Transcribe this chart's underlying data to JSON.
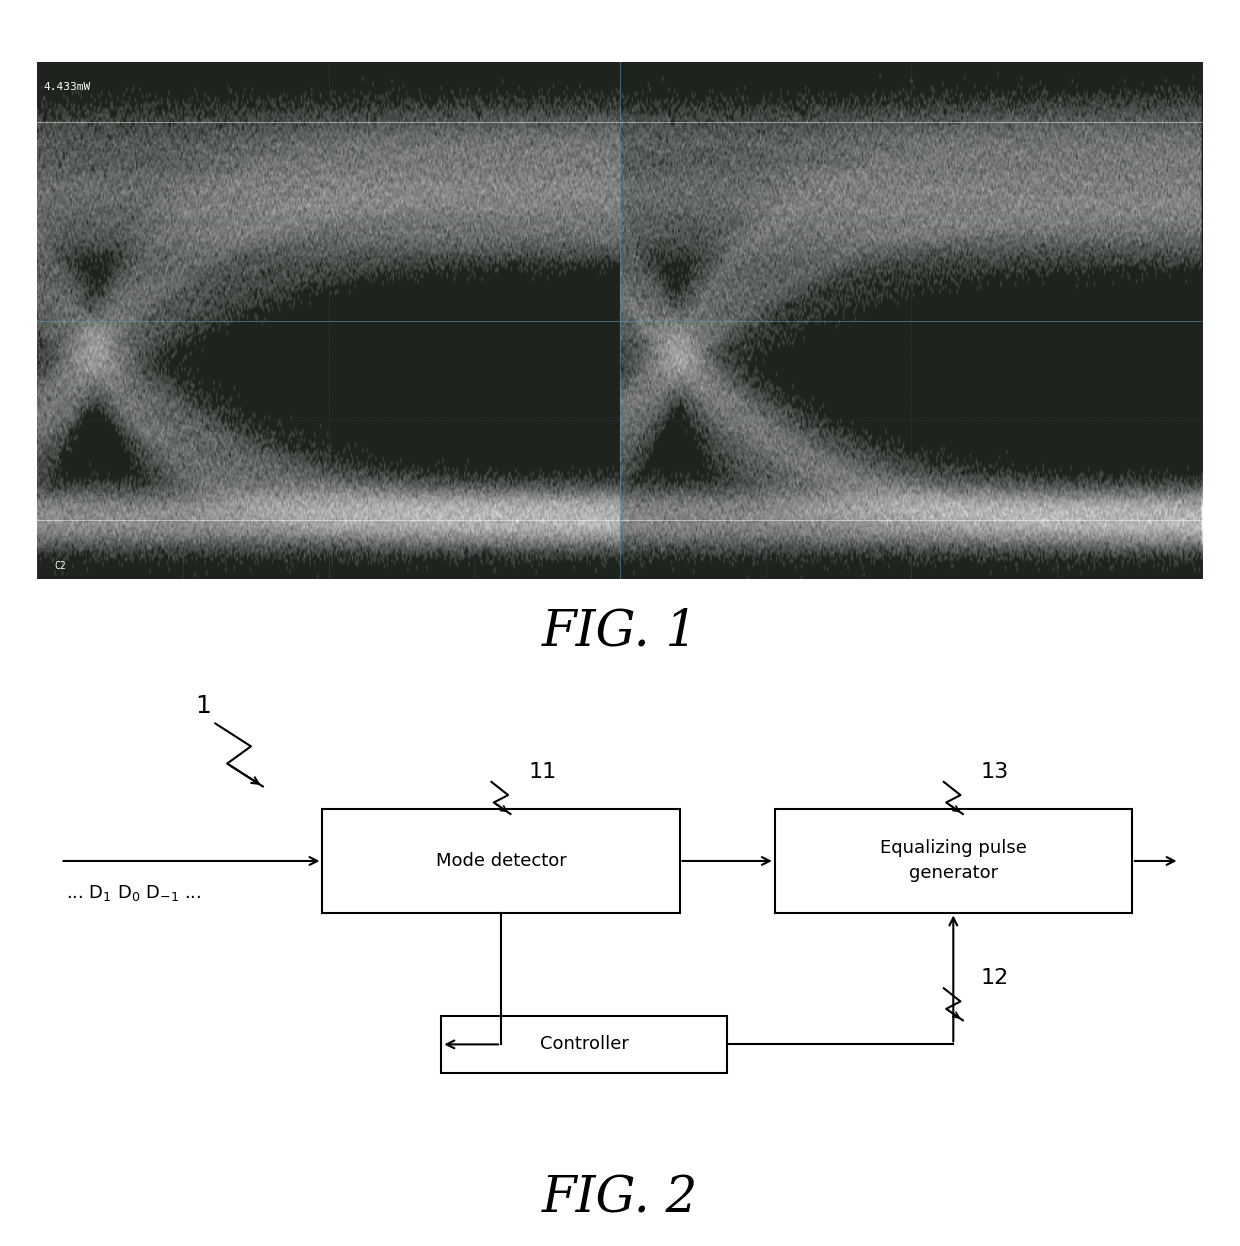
{
  "fig_width": 12.4,
  "fig_height": 12.46,
  "bg_color": "#ffffff",
  "fig1_label": "FIG. 1",
  "fig2_label": "FIG. 2",
  "osc_text": "4.433mW",
  "osc_bg": "#1a1a1a",
  "osc_grid_color": "#5599bb",
  "osc_border_color": "#666666",
  "diagram_label_1": "1",
  "diagram_label_11": "11",
  "diagram_label_12": "12",
  "diagram_label_13": "13",
  "box_mode_detector": "Mode detector",
  "box_equalizing": "Equalizing pulse\ngenerator",
  "box_controller": "Controller",
  "data_label_parts": [
    "... D",
    "1",
    " D",
    "0",
    " D",
    "-1",
    " ..."
  ],
  "font_size_fig_label": 36,
  "font_size_box": 13,
  "font_size_data_label": 13,
  "font_size_number": 16
}
